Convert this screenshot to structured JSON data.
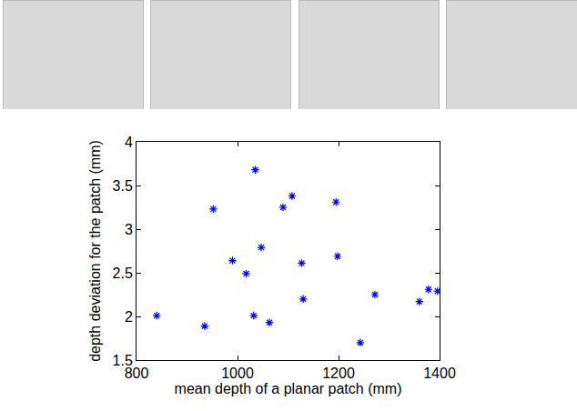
{
  "chart_data": {
    "type": "scatter",
    "x_label": "mean depth of a planar patch (mm)",
    "y_label": "depth deviation for the patch (mm)",
    "x": [
      840,
      935,
      952,
      990,
      1017,
      1032,
      1035,
      1047,
      1063,
      1090,
      1108,
      1127,
      1130,
      1195,
      1198,
      1243,
      1272,
      1360,
      1378,
      1396
    ],
    "values": [
      2.01,
      1.89,
      3.23,
      2.64,
      2.49,
      2.01,
      3.68,
      2.79,
      1.93,
      3.25,
      3.38,
      2.61,
      2.2,
      3.31,
      2.69,
      1.7,
      2.25,
      2.17,
      2.31,
      2.29
    ],
    "color": "#0000ff",
    "marker": "asterisk",
    "xlim": [
      800,
      1400
    ],
    "xticks": [
      800,
      1000,
      1200,
      1400
    ],
    "ylim": [
      1.5,
      4
    ],
    "yticks": [
      1.5,
      2,
      2.5,
      3,
      3.5,
      4
    ],
    "grid": false
  }
}
